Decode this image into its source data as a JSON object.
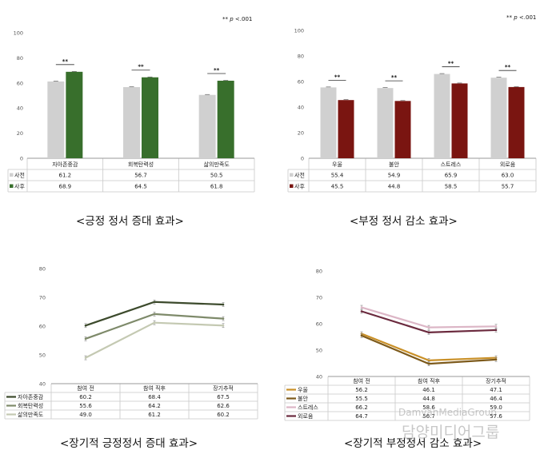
{
  "significance_note": {
    "stars": "**",
    "p": "p",
    "rest": "<.001"
  },
  "watermark": {
    "latin": "DamyanMediaGroup",
    "korean": "담양미디어그룹"
  },
  "chart_data": [
    {
      "id": "tl",
      "type": "bar",
      "caption": "<긍정 정서 증대 효과>",
      "ylim": [
        0,
        100
      ],
      "yticks": [
        0,
        20,
        40,
        60,
        80,
        100
      ],
      "categories": [
        "자아존중감",
        "회복탄력성",
        "삶의만족도"
      ],
      "series": [
        {
          "name": "사전",
          "color": "#d0d0d0",
          "values": [
            61.2,
            56.7,
            50.5
          ]
        },
        {
          "name": "사후",
          "color": "#386f2c",
          "values": [
            68.9,
            64.5,
            61.8
          ]
        }
      ],
      "significance": [
        "**",
        "**",
        "**"
      ],
      "table": [
        [
          "61.2",
          "56.7",
          "50.5"
        ],
        [
          "68.9",
          "64.5",
          "61.8"
        ]
      ],
      "grid": false,
      "legend": "table-left"
    },
    {
      "id": "tr",
      "type": "bar",
      "caption": "<부정 정서 감소 효과>",
      "ylim": [
        0,
        100
      ],
      "yticks": [
        0,
        20,
        40,
        60,
        80,
        100
      ],
      "categories": [
        "우울",
        "불안",
        "스트레스",
        "외로움"
      ],
      "series": [
        {
          "name": "사전",
          "color": "#d0d0d0",
          "values": [
            55.4,
            54.9,
            65.9,
            63.0
          ]
        },
        {
          "name": "사후",
          "color": "#7a1511",
          "values": [
            45.5,
            44.8,
            58.5,
            55.7
          ]
        }
      ],
      "significance": [
        "**",
        "**",
        "**",
        "**"
      ],
      "table": [
        [
          "55.4",
          "54.9",
          "65.9",
          "63.0"
        ],
        [
          "45.5",
          "44.8",
          "58.5",
          "55.7"
        ]
      ],
      "grid": false,
      "legend": "table-left"
    },
    {
      "id": "bl",
      "type": "line",
      "caption": "<장기적 긍정정서 증대 효과>",
      "ylim": [
        40,
        80
      ],
      "yticks": [
        40,
        50,
        60,
        70,
        80
      ],
      "categories": [
        "참여 전",
        "참여 직후",
        "장기추적"
      ],
      "series": [
        {
          "name": "자아존중감",
          "color": "#3c4a2c",
          "values": [
            60.2,
            68.4,
            67.5
          ]
        },
        {
          "name": "회복탄력성",
          "color": "#7e8a6a",
          "values": [
            55.6,
            64.2,
            62.6
          ]
        },
        {
          "name": "삶의만족도",
          "color": "#c4c9b2",
          "values": [
            49.0,
            61.2,
            60.2
          ]
        }
      ],
      "table": [
        [
          "60.2",
          "68.4",
          "67.5"
        ],
        [
          "55.6",
          "64.2",
          "62.6"
        ],
        [
          "49.0",
          "61.2",
          "60.2"
        ]
      ],
      "grid": false,
      "legend": "table-left"
    },
    {
      "id": "br",
      "type": "line",
      "caption": "<장기적 부정정서 감소 효과>",
      "ylim": [
        40,
        80
      ],
      "yticks": [
        40,
        50,
        60,
        70,
        80
      ],
      "categories": [
        "참여 전",
        "참여 직후",
        "장기추적"
      ],
      "series": [
        {
          "name": "우울",
          "color": "#c99028",
          "values": [
            56.2,
            46.1,
            47.1
          ]
        },
        {
          "name": "불안",
          "color": "#7d5a1b",
          "values": [
            55.5,
            44.8,
            46.4
          ]
        },
        {
          "name": "스트레스",
          "color": "#dcb6c6",
          "values": [
            66.2,
            58.6,
            59.0
          ]
        },
        {
          "name": "외로움",
          "color": "#6b2a3e",
          "values": [
            64.7,
            56.7,
            57.6
          ]
        }
      ],
      "table": [
        [
          "56.2",
          "46.1",
          "47.1"
        ],
        [
          "55.5",
          "44.8",
          "46.4"
        ],
        [
          "66.2",
          "58.6",
          "59.0"
        ],
        [
          "64.7",
          "56.7",
          "57.6"
        ]
      ],
      "grid": false,
      "legend": "table-left"
    }
  ]
}
